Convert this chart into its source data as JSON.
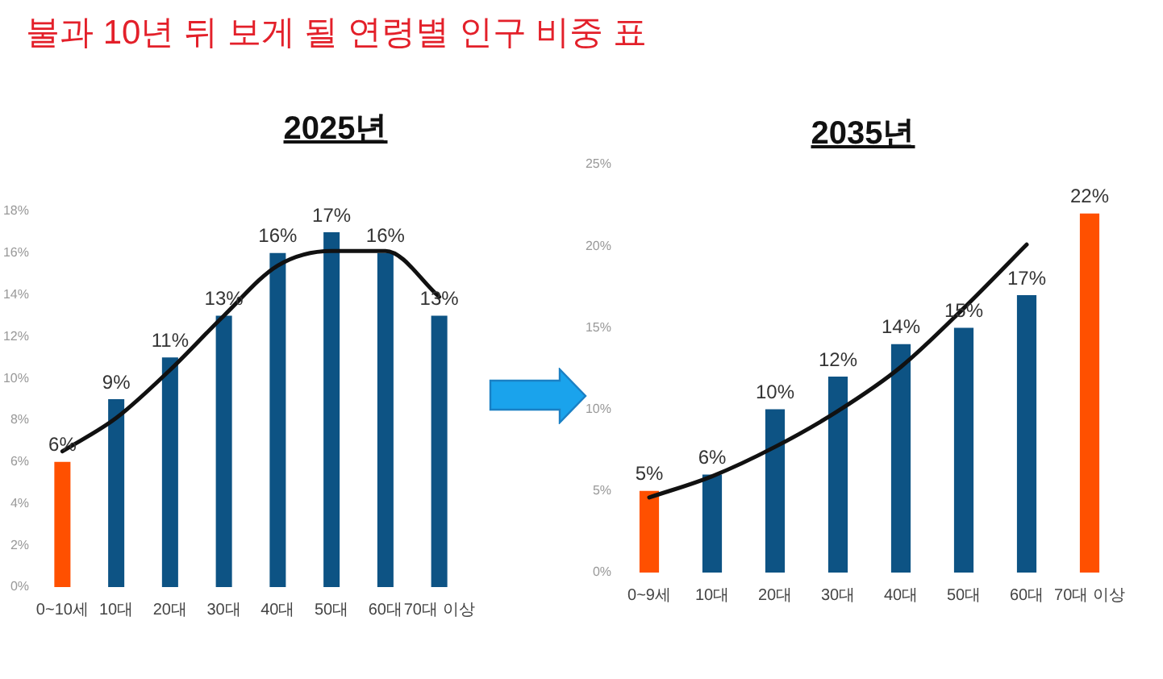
{
  "chart_data": [
    {
      "type": "other",
      "title": "불과 10년 뒤 보게 될 연령별 인구 비중 표"
    },
    {
      "type": "bar",
      "title": "2025년",
      "categories": [
        "0~10세",
        "10대",
        "20대",
        "30대",
        "40대",
        "50대",
        "60대",
        "70대 이상"
      ],
      "series": [
        {
          "colors": [
            "#ff5000",
            "#0d5384",
            "#0d5384",
            "#0d5384",
            "#0d5384",
            "#0d5384",
            "#0d5384",
            "#0d5384"
          ],
          "values": [
            6,
            9,
            11,
            13,
            16,
            17,
            16,
            13
          ],
          "value_labels": [
            "6%",
            "9%",
            "11%",
            "13%",
            "16%",
            "17%",
            "16%",
            "13%"
          ]
        },
        {
          "type": "line",
          "color": "#111111",
          "values": [
            6.5,
            8.1,
            10.4,
            13.0,
            15.4,
            16.1,
            16.1,
            13.9
          ]
        }
      ],
      "ylim": [
        0,
        18
      ],
      "yticks": [
        {
          "value": 0,
          "label": "0%"
        },
        {
          "value": 2,
          "label": "2%"
        },
        {
          "value": 4,
          "label": "4%"
        },
        {
          "value": 6,
          "label": "6%"
        },
        {
          "value": 8,
          "label": "8%"
        },
        {
          "value": 10,
          "label": "10%"
        },
        {
          "value": 12,
          "label": "12%"
        },
        {
          "value": 14,
          "label": "14%"
        },
        {
          "value": 16,
          "label": "16%"
        },
        {
          "value": 18,
          "label": "18%"
        }
      ]
    },
    {
      "type": "bar",
      "title": "2035년",
      "categories": [
        "0~9세",
        "10대",
        "20대",
        "30대",
        "40대",
        "50대",
        "60대",
        "70대 이상"
      ],
      "series": [
        {
          "colors": [
            "#ff5000",
            "#0d5384",
            "#0d5384",
            "#0d5384",
            "#0d5384",
            "#0d5384",
            "#0d5384",
            "#ff5000"
          ],
          "values": [
            5,
            6,
            10,
            12,
            14,
            15,
            17,
            22
          ],
          "value_labels": [
            "5%",
            "6%",
            "10%",
            "12%",
            "14%",
            "15%",
            "17%",
            "22%"
          ]
        },
        {
          "type": "line",
          "color": "#111111",
          "values": [
            4.6,
            5.9,
            7.7,
            9.9,
            12.6,
            16.2,
            20.1,
            null
          ]
        }
      ],
      "ylim": [
        0,
        25
      ],
      "yticks": [
        {
          "value": 0,
          "label": "0%"
        },
        {
          "value": 5,
          "label": "5%"
        },
        {
          "value": 10,
          "label": "10%"
        },
        {
          "value": 15,
          "label": "15%"
        },
        {
          "value": 20,
          "label": "20%"
        },
        {
          "value": 25,
          "label": "25%"
        }
      ]
    }
  ]
}
